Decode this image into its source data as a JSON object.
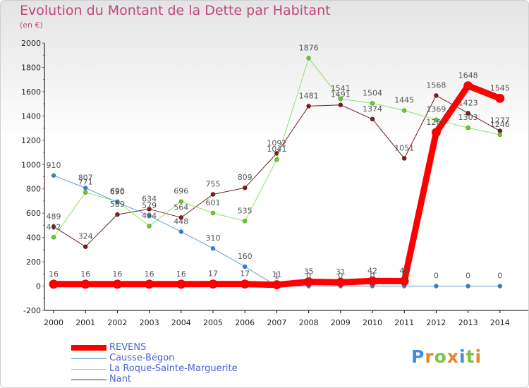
{
  "title": "Evolution du Montant de la Dette par Habitant",
  "subtitle": "(en €)",
  "logo": {
    "letters": [
      "P",
      "r",
      "o",
      "x",
      "i",
      "t",
      "i"
    ],
    "colors": [
      "#3a8ee0",
      "#e8862a",
      "#7cc24a",
      "#e8862a",
      "#3a8ee0",
      "#7cc24a",
      "#e8862a"
    ]
  },
  "chart_data": {
    "type": "line",
    "title": "Evolution du Montant de la Dette par Habitant",
    "ylabel": "(en €)",
    "x": [
      "2000",
      "2001",
      "2002",
      "2003",
      "2004",
      "2005",
      "2006",
      "2007",
      "2008",
      "2009",
      "2010",
      "2011",
      "2012",
      "2013",
      "2014"
    ],
    "ylim": [
      -200,
      2000
    ],
    "yticks": [
      "-200",
      "0",
      "200",
      "400",
      "600",
      "800",
      "1000",
      "1200",
      "1400",
      "1600",
      "1800",
      "2000"
    ],
    "grid": false,
    "legend_position": "bottom-left",
    "series": [
      {
        "name": "REVENS",
        "color": "#ff0000",
        "values": [
          16,
          16,
          16,
          16,
          16,
          17,
          17,
          11,
          35,
          31,
          42,
          41,
          1264,
          1648,
          1545
        ],
        "labels": [
          "16",
          "16",
          "16",
          "16",
          "16",
          "17",
          "17",
          "11",
          "35",
          "31",
          "42",
          "41",
          "1264",
          "1648",
          "1545"
        ]
      },
      {
        "name": "Causse-Bégon",
        "color": "#5b9bd5",
        "values": [
          910,
          807,
          690,
          579,
          448,
          310,
          160,
          1,
          0,
          0,
          0,
          0,
          0,
          0,
          0
        ],
        "labels": [
          "910",
          "807",
          "690",
          "579",
          "448",
          "310",
          "160",
          "1",
          "0",
          "0",
          "0",
          "0",
          "0",
          "0",
          "0"
        ]
      },
      {
        "name": "La Roque-Sainte-Marguerite",
        "color": "#90e070",
        "values": [
          402,
          771,
          696,
          494,
          696,
          601,
          535,
          1041,
          1876,
          1541,
          1504,
          1445,
          1369,
          1303,
          1246
        ],
        "labels": [
          "402",
          "771",
          "696",
          "494",
          "696",
          "601",
          "535",
          "1041",
          "1876",
          "1541",
          "1504",
          "1445",
          "1369",
          "1303",
          "1246"
        ]
      },
      {
        "name": "Nant",
        "color": "#702020",
        "values": [
          489,
          324,
          589,
          634,
          564,
          755,
          809,
          1092,
          1481,
          1491,
          1374,
          1051,
          1568,
          1423,
          1277
        ],
        "labels": [
          "489",
          "324",
          "589",
          "634",
          "564",
          "755",
          "809",
          "1092",
          "1481",
          "1491",
          "1374",
          "1051",
          "1568",
          "1423",
          "1277"
        ]
      }
    ]
  }
}
